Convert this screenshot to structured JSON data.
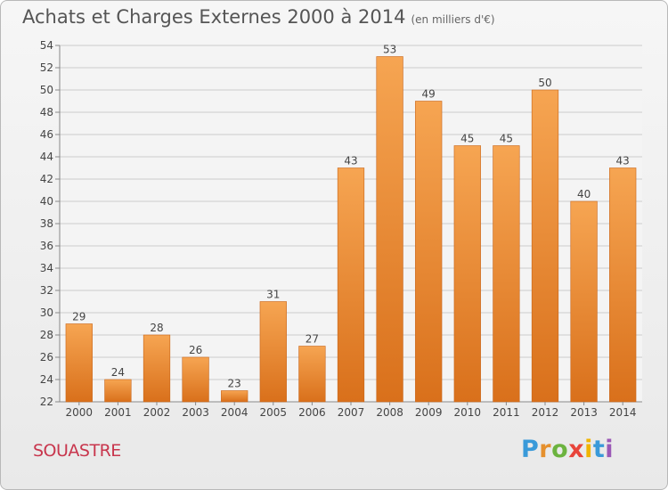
{
  "header": {
    "title": "Achats et Charges Externes 2000 à 2014",
    "unit": "(en milliers d'€)"
  },
  "footer": {
    "place": "SOUASTRE",
    "logo_letters": [
      "P",
      "r",
      "o",
      "x",
      "i",
      "t",
      "i"
    ],
    "logo_colors": [
      "#3a9ad9",
      "#e5902d",
      "#6cb33f",
      "#e8443a",
      "#f0b400",
      "#3a9ad9",
      "#9b59b6"
    ]
  },
  "colors": {
    "bar_light": "#f6a552",
    "bar_dark": "#d9701b",
    "grid": "#cccccc"
  },
  "chart_data": {
    "type": "bar",
    "title": "Achats et Charges Externes 2000 à 2014",
    "subtitle": "(en milliers d'€)",
    "xlabel": "",
    "ylabel": "",
    "categories": [
      "2000",
      "2001",
      "2002",
      "2003",
      "2004",
      "2005",
      "2006",
      "2007",
      "2008",
      "2009",
      "2010",
      "2011",
      "2012",
      "2013",
      "2014"
    ],
    "values": [
      29,
      24,
      28,
      26,
      23,
      31,
      27,
      43,
      53,
      49,
      45,
      45,
      50,
      40,
      43
    ],
    "ylim": [
      22,
      54
    ],
    "yticks": [
      22,
      24,
      26,
      28,
      30,
      32,
      34,
      36,
      38,
      40,
      42,
      44,
      46,
      48,
      50,
      52,
      54
    ],
    "grid": true,
    "legend": "none"
  }
}
